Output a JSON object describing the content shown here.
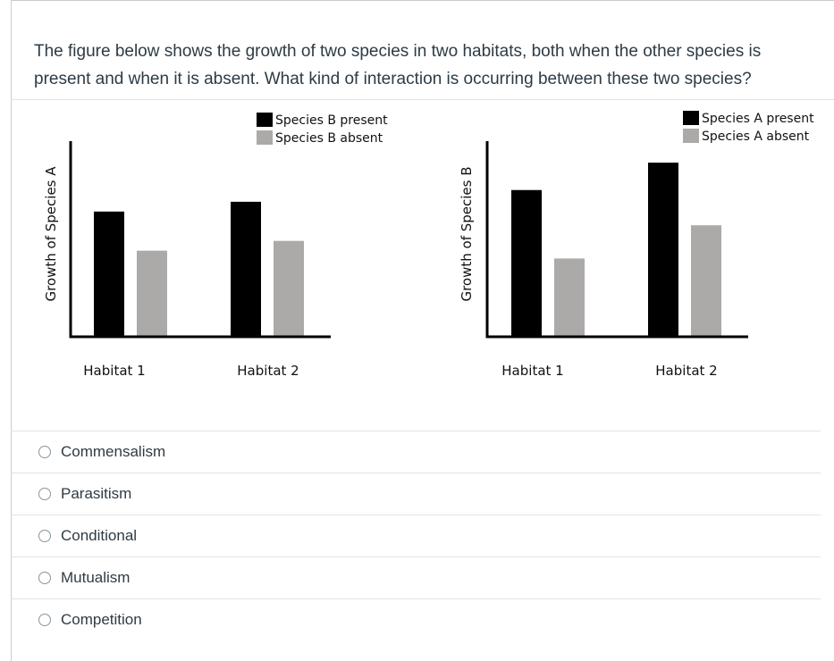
{
  "question": {
    "text": "The figure below shows the growth of two species in two habitats, both when the other species is present and when it is absent. What kind of interaction is occurring between these two species?"
  },
  "chart_data": [
    {
      "type": "bar",
      "title": "",
      "ylabel": "Growth of Species A",
      "xlabel": "",
      "categories": [
        "Habitat 1",
        "Habitat 2"
      ],
      "series": [
        {
          "name": "Species B present",
          "color": "#000000",
          "values": [
            6.4,
            6.9
          ]
        },
        {
          "name": "Species B absent",
          "color": "#aca9a9",
          "values": [
            4.4,
            4.9
          ]
        }
      ],
      "ylim": [
        0,
        10
      ],
      "legend": "top-center"
    },
    {
      "type": "bar",
      "title": "",
      "ylabel": "Growth of Species B",
      "xlabel": "",
      "categories": [
        "Habitat 1",
        "Habitat 2"
      ],
      "series": [
        {
          "name": "Species A present",
          "color": "#000000",
          "values": [
            7.5,
            8.9
          ]
        },
        {
          "name": "Species A absent",
          "color": "#aca9a9",
          "values": [
            4.0,
            5.7
          ]
        }
      ],
      "ylim": [
        0,
        10
      ],
      "legend": "top-right"
    }
  ],
  "answers": [
    {
      "label": "Commensalism"
    },
    {
      "label": "Parasitism"
    },
    {
      "label": "Conditional"
    },
    {
      "label": "Mutualism"
    },
    {
      "label": "Competition"
    }
  ]
}
